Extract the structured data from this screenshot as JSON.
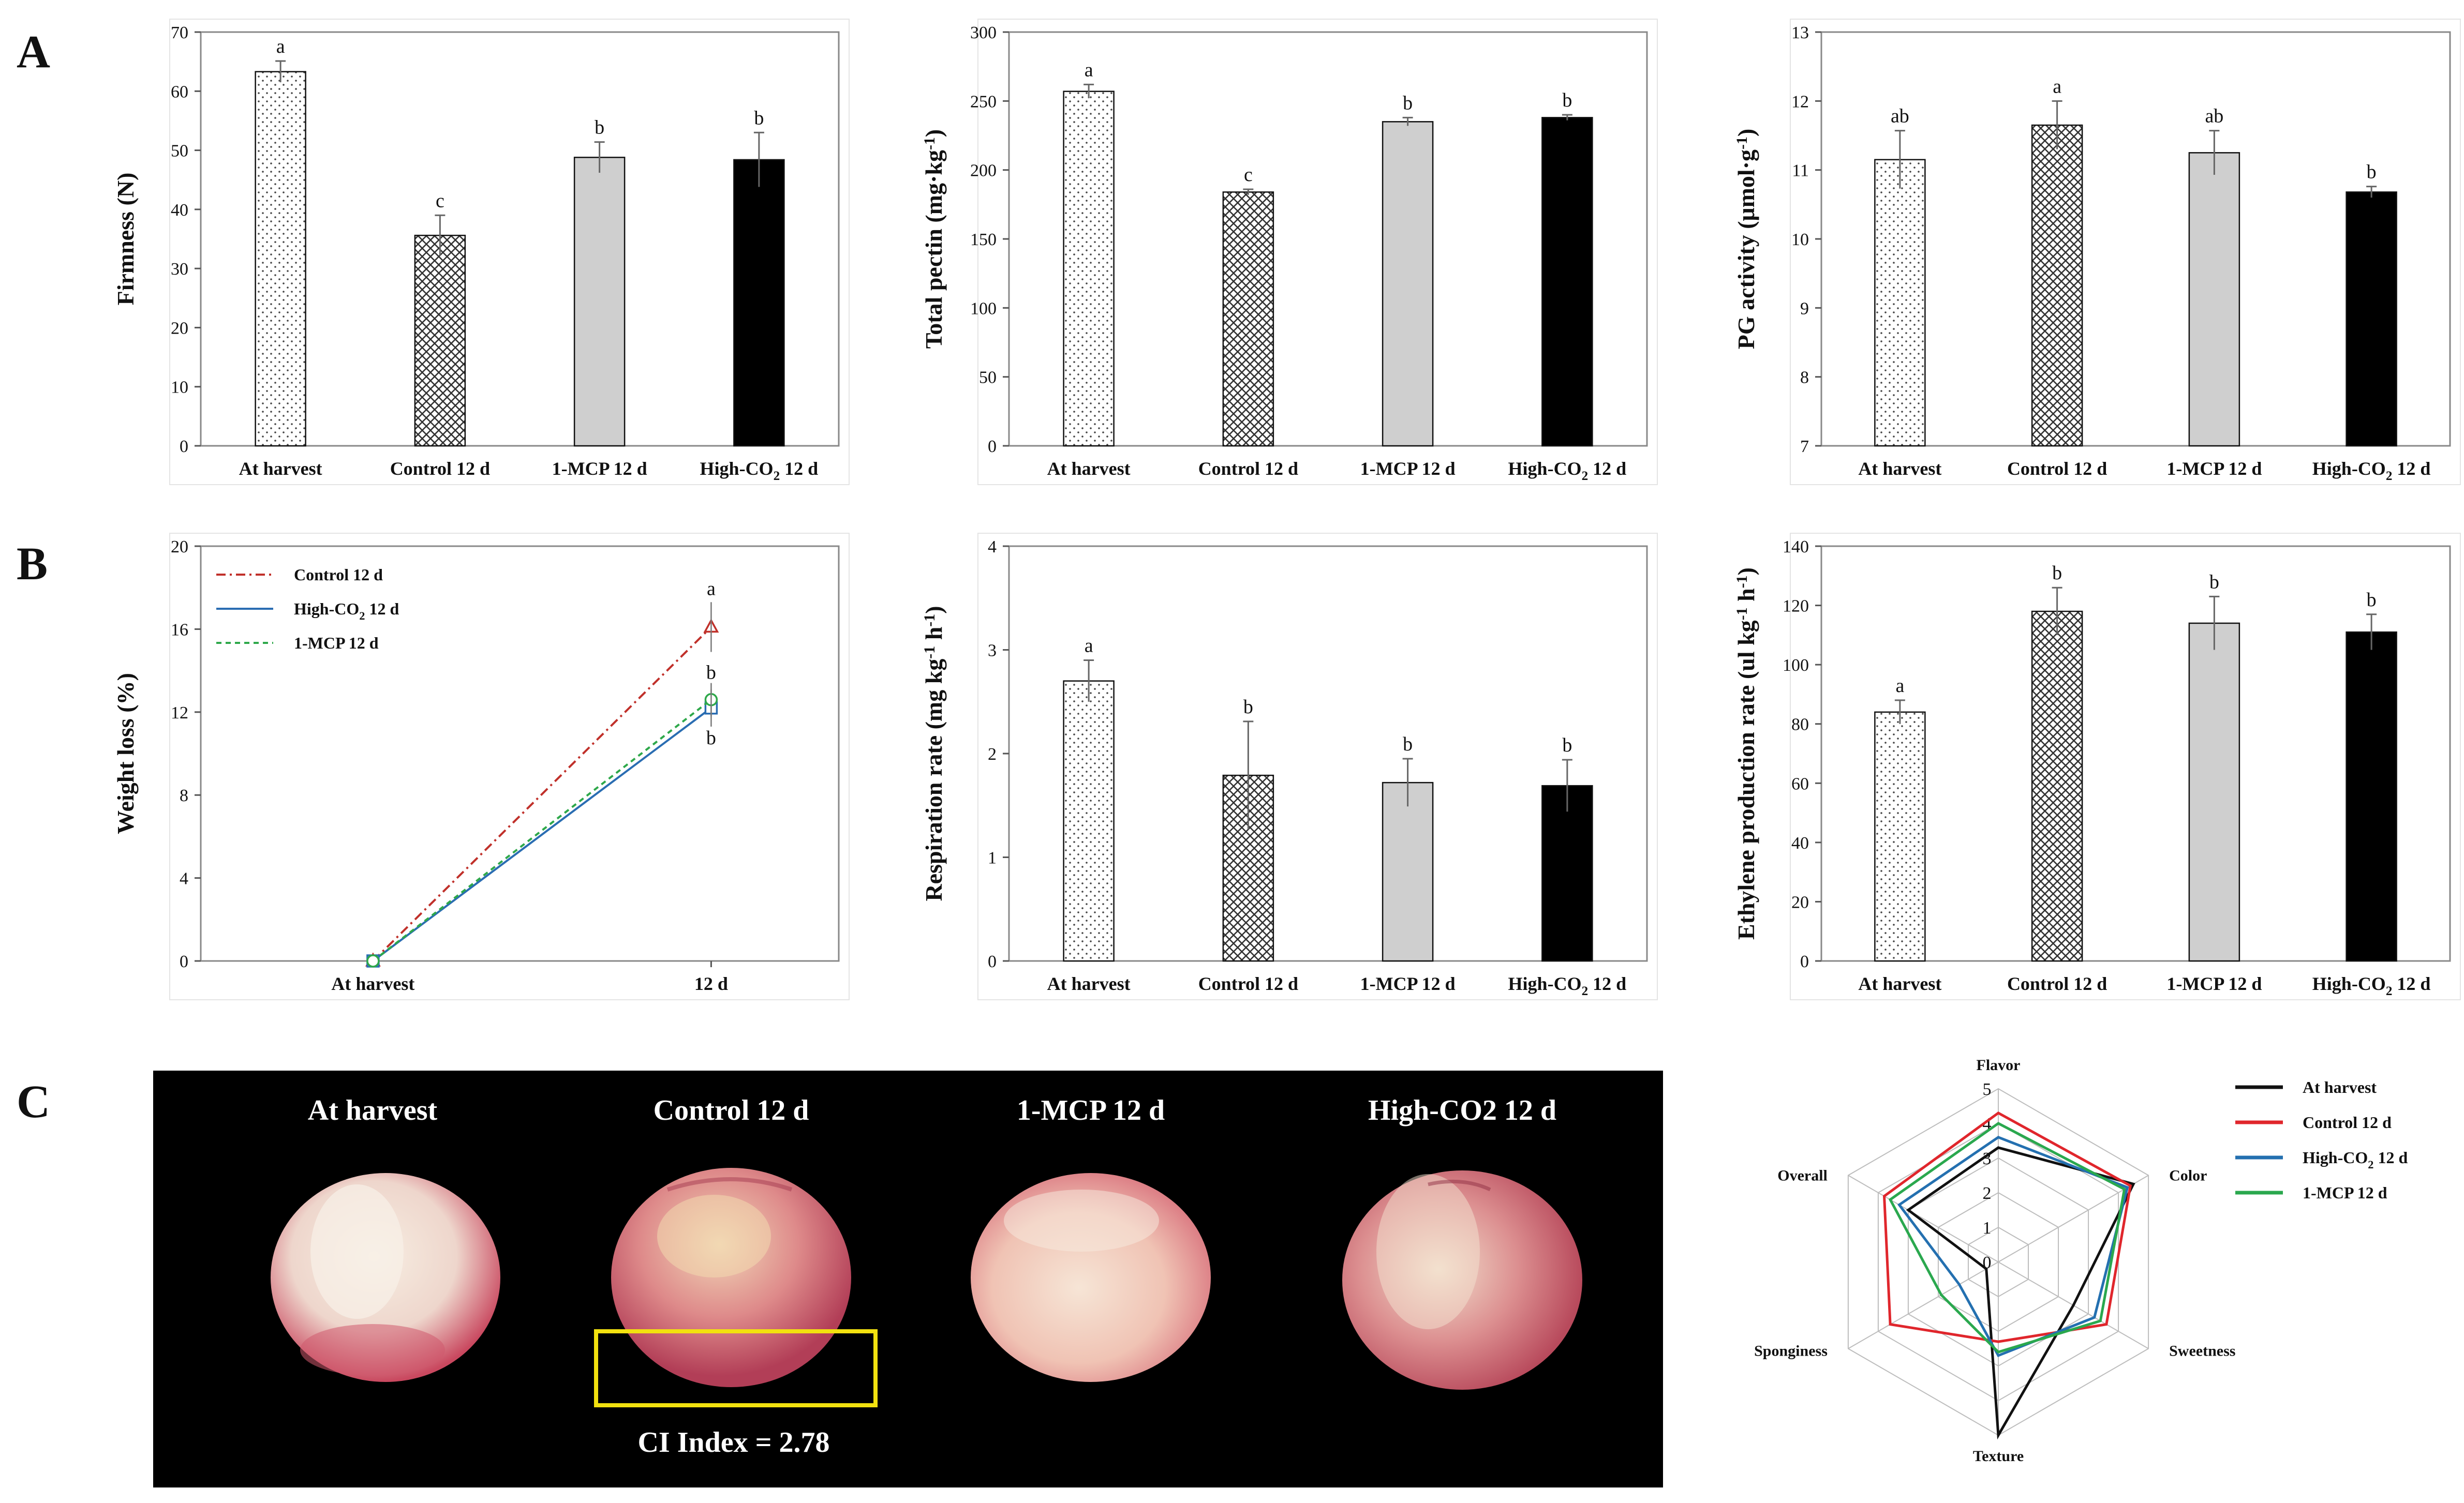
{
  "panels": {
    "A": "A",
    "B": "B",
    "C": "C"
  },
  "chart_data": [
    {
      "id": "firmness",
      "type": "bar",
      "ylabel": "Firmness (N)",
      "ylim": [
        0,
        70
      ],
      "yticks": [
        0,
        10,
        20,
        30,
        40,
        50,
        60,
        70
      ],
      "categories": [
        "At harvest",
        "Control 12 d",
        "1-MCP 12 d",
        "High-CO2 12 d"
      ],
      "values": [
        63.3,
        35.6,
        48.8,
        48.4
      ],
      "errors": [
        1.8,
        3.4,
        2.6,
        4.6
      ],
      "letters": [
        "a",
        "c",
        "b",
        "b"
      ],
      "patterns": [
        "dots",
        "cross",
        "gray",
        "black"
      ]
    },
    {
      "id": "pectin",
      "type": "bar",
      "ylabel": "Total pectin (mg·kg-1)",
      "ylim": [
        0,
        300
      ],
      "yticks": [
        0,
        50,
        100,
        150,
        200,
        250,
        300
      ],
      "categories": [
        "At harvest",
        "Control 12 d",
        "1-MCP 12 d",
        "High-CO2 12 d"
      ],
      "values": [
        257,
        184,
        235,
        238
      ],
      "errors": [
        5,
        2,
        3,
        2
      ],
      "letters": [
        "a",
        "c",
        "b",
        "b"
      ],
      "patterns": [
        "dots",
        "cross",
        "gray",
        "black"
      ]
    },
    {
      "id": "pg",
      "type": "bar",
      "ylabel": "PG activity (μmol·g-1)",
      "ylim": [
        7,
        13
      ],
      "yticks": [
        7,
        8,
        9,
        10,
        11,
        12,
        13
      ],
      "categories": [
        "At harvest",
        "Control 12 d",
        "1-MCP 12 d",
        "High-CO2 12 d"
      ],
      "values": [
        11.15,
        11.65,
        11.25,
        10.68
      ],
      "errors": [
        0.42,
        0.35,
        0.32,
        0.08
      ],
      "letters": [
        "ab",
        "a",
        "ab",
        "b"
      ],
      "patterns": [
        "dots",
        "cross",
        "gray",
        "black"
      ]
    },
    {
      "id": "weightloss",
      "type": "line",
      "ylabel": "Weight loss (%)",
      "ylim": [
        0,
        20
      ],
      "yticks": [
        0,
        4,
        8,
        12,
        16,
        20
      ],
      "x": [
        "At harvest",
        "12 d"
      ],
      "series": [
        {
          "name": "Control 12 d",
          "values": [
            0,
            16.1
          ],
          "error": 1.2,
          "letter": "a",
          "color": "#c0302a",
          "marker": "triangle",
          "dash": "18,8,4,8"
        },
        {
          "name": "High-CO2 12 d",
          "values": [
            0,
            12.2
          ],
          "error": 0.9,
          "letter": "b",
          "color": "#2a6db2",
          "marker": "square",
          "dash": ""
        },
        {
          "name": "1-MCP 12 d",
          "values": [
            0,
            12.6
          ],
          "error": 0.8,
          "letter": "b",
          "color": "#2ea84a",
          "marker": "circle",
          "dash": "10,8"
        }
      ]
    },
    {
      "id": "respiration",
      "type": "bar",
      "ylabel": "Respiration rate (mg kg-1 h-1)",
      "ylim": [
        0,
        4
      ],
      "yticks": [
        0,
        1,
        2,
        3,
        4
      ],
      "categories": [
        "At harvest",
        "Control 12 d",
        "1-MCP 12 d",
        "High-CO2 12 d"
      ],
      "values": [
        2.7,
        1.79,
        1.72,
        1.69
      ],
      "errors": [
        0.2,
        0.52,
        0.23,
        0.25
      ],
      "letters": [
        "a",
        "b",
        "b",
        "b"
      ],
      "patterns": [
        "dots",
        "cross",
        "gray",
        "black"
      ]
    },
    {
      "id": "ethylene",
      "type": "bar",
      "ylabel": "Ethylene production rate (ul kg-1 h-1)",
      "ylim": [
        0,
        140
      ],
      "yticks": [
        0,
        20,
        40,
        60,
        80,
        100,
        120,
        140
      ],
      "categories": [
        "At harvest",
        "Control 12 d",
        "1-MCP 12 d",
        "High-CO2 12 d"
      ],
      "values": [
        84,
        118,
        114,
        111
      ],
      "errors": [
        4,
        8,
        9,
        6
      ],
      "letters": [
        "a",
        "b",
        "b",
        "b"
      ],
      "patterns": [
        "dots",
        "cross",
        "gray",
        "black"
      ]
    },
    {
      "id": "sensory",
      "type": "radar",
      "rmax": 5,
      "rticks": [
        0,
        1,
        2,
        3,
        4,
        5
      ],
      "axes": [
        "Flavor",
        "Color",
        "Sweetness",
        "Texture",
        "Sponginess",
        "Overall"
      ],
      "series": [
        {
          "name": "At harvest",
          "color": "#111111",
          "values": [
            3.3,
            4.5,
            2.5,
            5.0,
            0.4,
            3.0
          ]
        },
        {
          "name": "Control 12 d",
          "color": "#e0262c",
          "values": [
            4.3,
            4.4,
            3.6,
            2.3,
            3.6,
            3.8
          ]
        },
        {
          "name": "High-CO2 12 d",
          "color": "#2470b0",
          "values": [
            3.6,
            4.3,
            3.2,
            2.7,
            1.3,
            3.3
          ]
        },
        {
          "name": "1-MCP 12 d",
          "color": "#2aa84e",
          "values": [
            4.0,
            4.2,
            3.4,
            2.6,
            1.9,
            3.6
          ]
        }
      ]
    }
  ],
  "photos": {
    "labels": [
      "At harvest",
      "Control 12 d",
      "1-MCP 12 d",
      "High-CO2 12 d"
    ],
    "ci_text": "CI Index = 2.78"
  },
  "colors": {
    "highlight": "#f2e10f",
    "photo_bg": "#000000"
  }
}
